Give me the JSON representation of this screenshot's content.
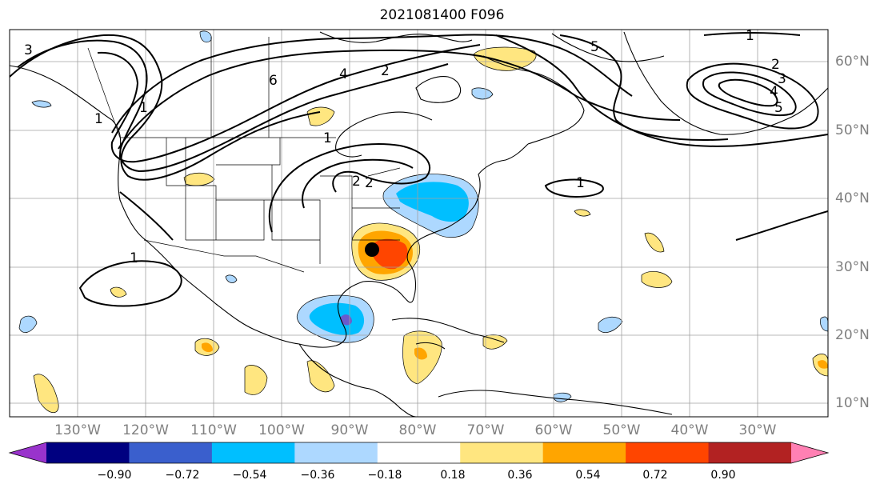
{
  "title": "2021081400 F096",
  "longitude_labels": [
    "130°W",
    "120°W",
    "110°W",
    "100°W",
    "90°W",
    "80°W",
    "70°W",
    "60°W",
    "50°W",
    "40°W",
    "30°W"
  ],
  "latitude_labels": [
    "60°N",
    "50°N",
    "40°N",
    "30°N",
    "20°N",
    "10°N"
  ],
  "colorbar": {
    "ticks": [
      "−0.90",
      "−0.72",
      "−0.54",
      "−0.36",
      "−0.18",
      "0.18",
      "0.36",
      "0.54",
      "0.72",
      "0.90"
    ],
    "colors": [
      "#9933cc",
      "#000080",
      "#3a5fcd",
      "#00bfff",
      "#add8ff",
      "#ffffff",
      "#ffe680",
      "#ffa500",
      "#ff4500",
      "#b22222",
      "#ff80b3"
    ]
  },
  "contour_labels": [
    "3",
    "6",
    "4",
    "2",
    "1",
    "5",
    "2",
    "4",
    "5",
    "3",
    "2",
    "1",
    "2",
    "1",
    "1",
    "1",
    "1"
  ],
  "colors": {
    "contour": "#000000",
    "grid": "#a0a0a0",
    "marker": "#000000"
  }
}
